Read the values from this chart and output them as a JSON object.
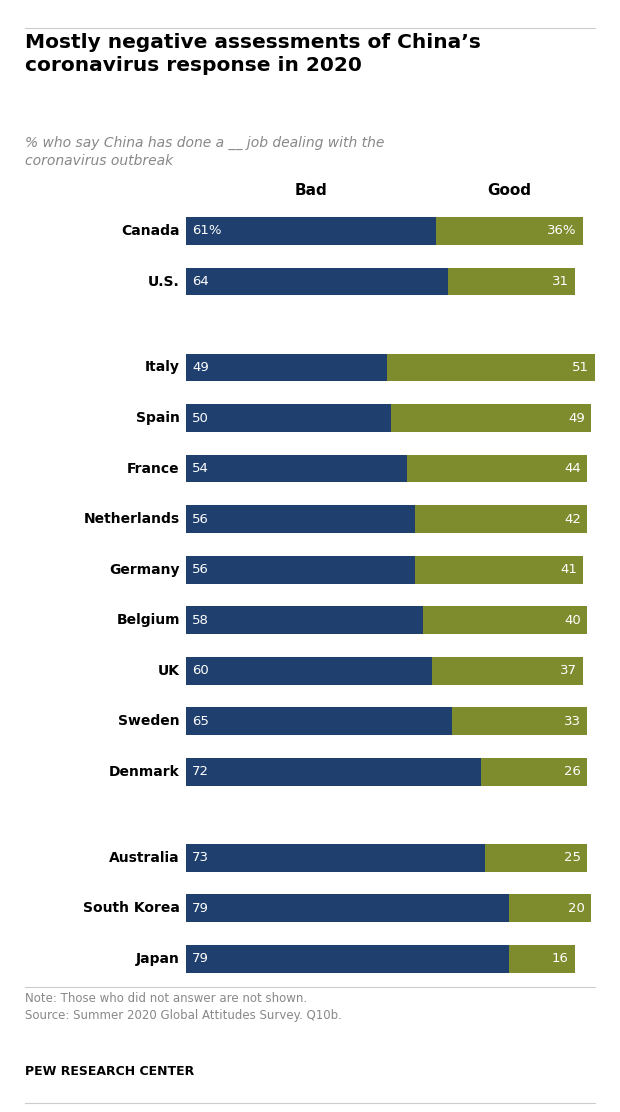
{
  "title": "Mostly negative assessments of China’s\ncoronavirus response in 2020",
  "subtitle": "% who say China has done a __ job dealing with the\ncoronavirus outbreak",
  "note": "Note: Those who did not answer are not shown.\nSource: Summer 2020 Global Attitudes Survey. Q10b.",
  "source_label": "PEW RESEARCH CENTER",
  "bad_color": "#1f3f6e",
  "good_color": "#7f8c2e",
  "background_color": "#ffffff",
  "title_color": "#000000",
  "subtitle_color": "#888888",
  "note_color": "#888888",
  "col_header_bad": "Bad",
  "col_header_good": "Good",
  "bar_height": 0.55,
  "countries": [
    "Canada",
    "U.S.",
    null,
    "Italy",
    "Spain",
    "France",
    "Netherlands",
    "Germany",
    "Belgium",
    "UK",
    "Sweden",
    "Denmark",
    null,
    "Australia",
    "South Korea",
    "Japan"
  ],
  "bad": [
    61,
    64,
    null,
    49,
    50,
    54,
    56,
    56,
    58,
    60,
    65,
    72,
    null,
    73,
    79,
    79
  ],
  "good": [
    36,
    31,
    null,
    51,
    49,
    44,
    42,
    41,
    40,
    37,
    33,
    26,
    null,
    25,
    20,
    16
  ],
  "bad_labels": [
    "61%",
    "64",
    null,
    "49",
    "50",
    "54",
    "56",
    "56",
    "58",
    "60",
    "65",
    "72",
    null,
    "73",
    "79",
    "79"
  ],
  "good_labels": [
    "36%",
    "31",
    null,
    "51",
    "49",
    "44",
    "42",
    "41",
    "40",
    "37",
    "33",
    "26",
    null,
    "25",
    "20",
    "16"
  ]
}
